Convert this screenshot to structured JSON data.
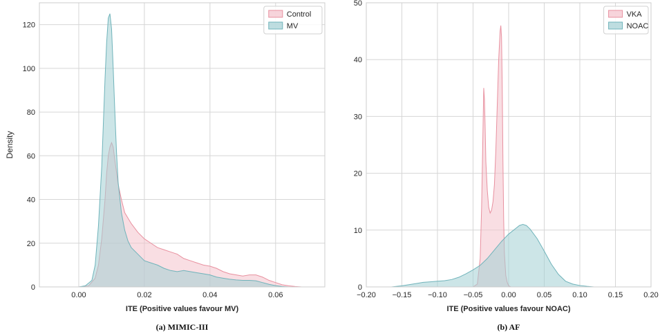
{
  "chart_data": [
    {
      "type": "area",
      "caption": "(a) MIMIC-III",
      "xlabel": "ITE (Positive values favour MV)",
      "ylabel": "Density",
      "xlim": [
        -0.012,
        0.075
      ],
      "ylim": [
        0,
        130
      ],
      "xticks": [
        0.0,
        0.02,
        0.04,
        0.06
      ],
      "xtick_labels": [
        "0.00",
        "0.02",
        "0.04",
        "0.06"
      ],
      "yticks": [
        0,
        20,
        40,
        60,
        80,
        100,
        120
      ],
      "ytick_labels": [
        "0",
        "20",
        "40",
        "60",
        "80",
        "100",
        "120"
      ],
      "grid": true,
      "legend_position": "top-right",
      "series": [
        {
          "name": "Control",
          "fill": "#f4c2cc",
          "stroke": "#e8909f",
          "x": [
            0.0,
            0.003,
            0.005,
            0.006,
            0.007,
            0.008,
            0.0085,
            0.009,
            0.0095,
            0.01,
            0.0105,
            0.011,
            0.012,
            0.013,
            0.014,
            0.016,
            0.018,
            0.02,
            0.022,
            0.024,
            0.026,
            0.028,
            0.03,
            0.032,
            0.034,
            0.036,
            0.038,
            0.04,
            0.042,
            0.044,
            0.046,
            0.048,
            0.05,
            0.052,
            0.054,
            0.056,
            0.058,
            0.06,
            0.062,
            0.064,
            0.066,
            0.068
          ],
          "y": [
            0,
            0.5,
            4,
            10,
            22,
            40,
            52,
            60,
            64,
            66,
            64,
            58,
            47,
            40,
            34,
            29,
            25,
            22,
            20,
            18,
            17,
            16,
            15,
            13,
            12,
            11,
            10,
            9.5,
            8.5,
            7,
            6,
            5.5,
            5,
            5.5,
            5.5,
            4.5,
            3,
            2,
            1,
            0.5,
            0.2,
            0
          ]
        },
        {
          "name": "MV",
          "fill": "#a3cfd3",
          "stroke": "#6fb3ba",
          "x": [
            0.0,
            0.002,
            0.004,
            0.005,
            0.006,
            0.007,
            0.0075,
            0.008,
            0.0085,
            0.009,
            0.0095,
            0.01,
            0.0105,
            0.011,
            0.0115,
            0.012,
            0.013,
            0.014,
            0.015,
            0.016,
            0.018,
            0.02,
            0.022,
            0.024,
            0.026,
            0.028,
            0.03,
            0.032,
            0.034,
            0.036,
            0.038,
            0.04,
            0.042,
            0.044,
            0.046,
            0.048,
            0.05,
            0.052,
            0.054,
            0.056,
            0.058,
            0.06,
            0.062,
            0.064
          ],
          "y": [
            0,
            0.5,
            3,
            10,
            28,
            55,
            75,
            95,
            112,
            123,
            125,
            118,
            100,
            80,
            62,
            48,
            34,
            26,
            21,
            18,
            15,
            12,
            11,
            10,
            8.5,
            7.5,
            7,
            7.5,
            7,
            6.5,
            6,
            5.5,
            4.5,
            4,
            3.5,
            3.2,
            3,
            3,
            2.8,
            2,
            1.2,
            0.6,
            0.2,
            0
          ]
        }
      ]
    },
    {
      "type": "area",
      "caption": "(b) AF",
      "xlabel": "ITE (Positive values favour NOAC)",
      "ylabel": "",
      "xlim": [
        -0.2,
        0.2
      ],
      "ylim": [
        0,
        50
      ],
      "xticks": [
        -0.2,
        -0.15,
        -0.1,
        -0.05,
        0.0,
        0.05,
        0.1,
        0.15,
        0.2
      ],
      "xtick_labels": [
        "−0.20",
        "−0.15",
        "−0.10",
        "−0.05",
        "0.00",
        "0.05",
        "0.10",
        "0.15",
        "0.20"
      ],
      "yticks": [
        0,
        10,
        20,
        30,
        40,
        50
      ],
      "ytick_labels": [
        "0",
        "10",
        "20",
        "30",
        "40",
        "50"
      ],
      "grid": true,
      "legend_position": "top-right",
      "series": [
        {
          "name": "VKA",
          "fill": "#f4c2cc",
          "stroke": "#e8909f",
          "x": [
            -0.05,
            -0.044,
            -0.04,
            -0.038,
            -0.036,
            -0.035,
            -0.034,
            -0.033,
            -0.032,
            -0.03,
            -0.028,
            -0.026,
            -0.024,
            -0.022,
            -0.02,
            -0.018,
            -0.016,
            -0.014,
            -0.012,
            -0.011,
            -0.01,
            -0.009,
            -0.008,
            -0.007,
            -0.006,
            -0.004,
            -0.002,
            0.0,
            0.003
          ],
          "y": [
            0,
            0.5,
            5,
            14,
            28,
            35,
            33,
            28,
            22,
            17,
            14,
            13,
            13.5,
            15,
            18,
            24,
            32,
            40,
            45,
            46,
            44,
            35,
            22,
            12,
            6,
            2,
            0.8,
            0.2,
            0
          ]
        },
        {
          "name": "NOAC",
          "fill": "#a3cfd3",
          "stroke": "#6fb3ba",
          "x": [
            -0.165,
            -0.15,
            -0.14,
            -0.13,
            -0.12,
            -0.11,
            -0.1,
            -0.09,
            -0.08,
            -0.07,
            -0.06,
            -0.05,
            -0.04,
            -0.03,
            -0.02,
            -0.01,
            0.0,
            0.01,
            0.015,
            0.02,
            0.025,
            0.03,
            0.04,
            0.05,
            0.06,
            0.07,
            0.08,
            0.09,
            0.1,
            0.11,
            0.12
          ],
          "y": [
            0,
            0.2,
            0.4,
            0.6,
            0.8,
            0.9,
            1.0,
            1.1,
            1.3,
            1.7,
            2.3,
            3.0,
            3.8,
            5,
            6.5,
            8,
            9.3,
            10.3,
            10.8,
            11,
            10.8,
            10.2,
            8.5,
            6.3,
            4,
            2.2,
            1,
            0.5,
            0.25,
            0.1,
            0
          ]
        }
      ]
    }
  ]
}
